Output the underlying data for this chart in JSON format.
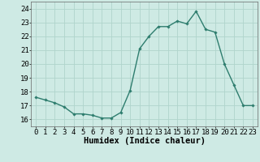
{
  "x": [
    0,
    1,
    2,
    3,
    4,
    5,
    6,
    7,
    8,
    9,
    10,
    11,
    12,
    13,
    14,
    15,
    16,
    17,
    18,
    19,
    20,
    21,
    22,
    23
  ],
  "y": [
    17.6,
    17.4,
    17.2,
    16.9,
    16.4,
    16.4,
    16.3,
    16.1,
    16.1,
    16.5,
    18.1,
    21.1,
    22.0,
    22.7,
    22.7,
    23.1,
    22.9,
    23.8,
    22.5,
    22.3,
    20.0,
    18.5,
    17.0,
    17.0
  ],
  "line_color": "#2e7d6e",
  "marker": "D",
  "marker_size": 1.8,
  "line_width": 1.0,
  "bg_color": "#ceeae4",
  "grid_color": "#b0d4cc",
  "xlabel": "Humidex (Indice chaleur)",
  "xlabel_fontsize": 7.5,
  "tick_fontsize": 6.5,
  "ylim": [
    15.5,
    24.5
  ],
  "yticks": [
    16,
    17,
    18,
    19,
    20,
    21,
    22,
    23,
    24
  ],
  "xticks": [
    0,
    1,
    2,
    3,
    4,
    5,
    6,
    7,
    8,
    9,
    10,
    11,
    12,
    13,
    14,
    15,
    16,
    17,
    18,
    19,
    20,
    21,
    22,
    23
  ],
  "xlim": [
    -0.5,
    23.5
  ]
}
